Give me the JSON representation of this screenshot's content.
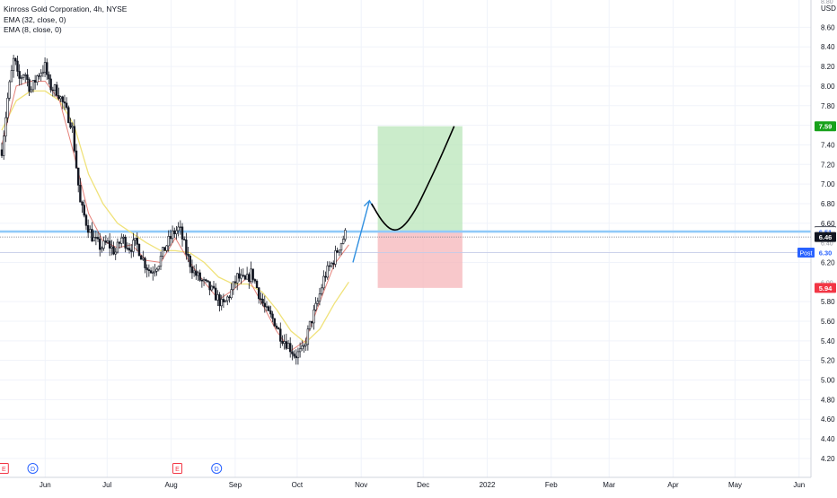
{
  "legend": {
    "symbol": "Kinross Gold Corporation, 4h, NYSE",
    "indicators": [
      "EMA (32, close, 0)",
      "EMA (8, close, 0)"
    ]
  },
  "axis": {
    "currency": "USD",
    "top_partial_label": "8.80",
    "partial_labels": [
      "6.40",
      "6.00"
    ]
  },
  "colors": {
    "candle": "#131722",
    "ema_fast": "#e6827a",
    "ema_slow": "#f0e27a",
    "profit_zone": "#b9e6b9",
    "loss_zone": "#f6b6b9",
    "arrow": "#2f8fe0",
    "hline": "#90caf9",
    "target_tag": "#17a11a",
    "stop_tag": "#f23645",
    "last_price_tag": "#131722",
    "level_tag": "#5d606b",
    "post_tag": "#2962ff"
  },
  "price_tags": [
    {
      "label": "7.59",
      "value": 7.59,
      "kind": "target"
    },
    {
      "label": "6.52",
      "value": 6.52,
      "kind": "level"
    },
    {
      "label": "6.51",
      "value": 6.51,
      "kind": "level_light"
    },
    {
      "label": "6.46",
      "value": 6.46,
      "kind": "last"
    },
    {
      "label": "6.30",
      "value": 6.3,
      "kind": "post"
    },
    {
      "label": "5.94",
      "value": 5.94,
      "kind": "stop"
    }
  ],
  "post_label": "Post",
  "event_markers": [
    {
      "date": "2021-05-12",
      "letter": "E",
      "kind": "earnings"
    },
    {
      "date": "2021-05-26",
      "letter": "D",
      "kind": "dividend"
    },
    {
      "date": "2021-08-04",
      "letter": "E",
      "kind": "earnings"
    },
    {
      "date": "2021-08-23",
      "letter": "D",
      "kind": "dividend"
    }
  ],
  "chart_data": {
    "type": "candlestick",
    "title": "Kinross Gold Corporation, 4h, NYSE",
    "xlabel": "",
    "ylabel": "USD",
    "x_range": [
      "2021-05-11",
      "2022-06-15"
    ],
    "ylim": [
      4.1,
      8.9
    ],
    "y_ticks": [
      8.6,
      8.4,
      8.2,
      8.0,
      7.8,
      7.6,
      7.4,
      7.2,
      7.0,
      6.8,
      6.6,
      6.2,
      5.8,
      5.6,
      5.4,
      5.2,
      5.0,
      4.8,
      4.6,
      4.4,
      4.2
    ],
    "y_tick_labels": [
      "8.60",
      "8.40",
      "8.20",
      "8.00",
      "7.80",
      "7.60",
      "7.40",
      "7.20",
      "7.00",
      "6.80",
      "6.60",
      "6.20",
      "5.80",
      "5.60",
      "5.40",
      "5.20",
      "5.00",
      "4.80",
      "4.60",
      "4.40",
      "4.20"
    ],
    "x_ticks": [
      {
        "date": "2021-06-01",
        "label": "Jun"
      },
      {
        "date": "2021-07-01",
        "label": "Jul"
      },
      {
        "date": "2021-08-01",
        "label": "Aug"
      },
      {
        "date": "2021-09-01",
        "label": "Sep"
      },
      {
        "date": "2021-10-01",
        "label": "Oct"
      },
      {
        "date": "2021-11-01",
        "label": "Nov"
      },
      {
        "date": "2021-12-01",
        "label": "Dec"
      },
      {
        "date": "2022-01-01",
        "label": "2022"
      },
      {
        "date": "2022-02-01",
        "label": "Feb"
      },
      {
        "date": "2022-03-01",
        "label": "Mar"
      },
      {
        "date": "2022-04-01",
        "label": "Apr"
      },
      {
        "date": "2022-05-01",
        "label": "May"
      },
      {
        "date": "2022-06-01",
        "label": "Jun"
      }
    ],
    "grid": true,
    "price_path": [
      [
        "2021-05-11",
        7.35
      ],
      [
        "2021-05-14",
        7.9
      ],
      [
        "2021-05-17",
        8.3
      ],
      [
        "2021-05-19",
        8.05
      ],
      [
        "2021-05-22",
        8.15
      ],
      [
        "2021-05-25",
        7.95
      ],
      [
        "2021-05-28",
        8.1
      ],
      [
        "2021-06-01",
        8.2
      ],
      [
        "2021-06-03",
        8.0
      ],
      [
        "2021-06-07",
        7.95
      ],
      [
        "2021-06-10",
        7.8
      ],
      [
        "2021-06-14",
        7.6
      ],
      [
        "2021-06-16",
        7.2
      ],
      [
        "2021-06-18",
        6.8
      ],
      [
        "2021-06-21",
        6.6
      ],
      [
        "2021-06-24",
        6.45
      ],
      [
        "2021-06-28",
        6.35
      ],
      [
        "2021-07-01",
        6.4
      ],
      [
        "2021-07-05",
        6.3
      ],
      [
        "2021-07-08",
        6.45
      ],
      [
        "2021-07-12",
        6.35
      ],
      [
        "2021-07-15",
        6.4
      ],
      [
        "2021-07-19",
        6.2
      ],
      [
        "2021-07-22",
        6.1
      ],
      [
        "2021-07-26",
        6.2
      ],
      [
        "2021-07-29",
        6.35
      ],
      [
        "2021-08-02",
        6.5
      ],
      [
        "2021-08-05",
        6.55
      ],
      [
        "2021-08-09",
        6.25
      ],
      [
        "2021-08-12",
        6.1
      ],
      [
        "2021-08-16",
        6.0
      ],
      [
        "2021-08-19",
        5.95
      ],
      [
        "2021-08-23",
        5.85
      ],
      [
        "2021-08-26",
        5.75
      ],
      [
        "2021-08-30",
        5.9
      ],
      [
        "2021-09-02",
        6.05
      ],
      [
        "2021-09-06",
        6.0
      ],
      [
        "2021-09-09",
        6.1
      ],
      [
        "2021-09-13",
        5.85
      ],
      [
        "2021-09-16",
        5.7
      ],
      [
        "2021-09-20",
        5.6
      ],
      [
        "2021-09-23",
        5.45
      ],
      [
        "2021-09-27",
        5.35
      ],
      [
        "2021-09-30",
        5.25
      ],
      [
        "2021-10-04",
        5.3
      ],
      [
        "2021-10-07",
        5.55
      ],
      [
        "2021-10-11",
        5.8
      ],
      [
        "2021-10-14",
        6.05
      ],
      [
        "2021-10-18",
        6.2
      ],
      [
        "2021-10-21",
        6.35
      ],
      [
        "2021-10-25",
        6.52
      ]
    ],
    "ema_32": [
      [
        "2021-05-11",
        7.55
      ],
      [
        "2021-05-18",
        7.85
      ],
      [
        "2021-05-25",
        7.95
      ],
      [
        "2021-06-01",
        7.95
      ],
      [
        "2021-06-08",
        7.85
      ],
      [
        "2021-06-15",
        7.6
      ],
      [
        "2021-06-22",
        7.1
      ],
      [
        "2021-06-29",
        6.8
      ],
      [
        "2021-07-06",
        6.6
      ],
      [
        "2021-07-13",
        6.5
      ],
      [
        "2021-07-20",
        6.4
      ],
      [
        "2021-07-27",
        6.32
      ],
      [
        "2021-08-03",
        6.32
      ],
      [
        "2021-08-10",
        6.3
      ],
      [
        "2021-08-17",
        6.2
      ],
      [
        "2021-08-24",
        6.05
      ],
      [
        "2021-08-31",
        5.98
      ],
      [
        "2021-09-07",
        5.98
      ],
      [
        "2021-09-14",
        5.9
      ],
      [
        "2021-09-21",
        5.72
      ],
      [
        "2021-09-28",
        5.5
      ],
      [
        "2021-10-05",
        5.38
      ],
      [
        "2021-10-12",
        5.52
      ],
      [
        "2021-10-19",
        5.78
      ],
      [
        "2021-10-26",
        6.0
      ]
    ],
    "ema_8": [
      [
        "2021-05-11",
        7.4
      ],
      [
        "2021-05-18",
        8.0
      ],
      [
        "2021-05-25",
        8.05
      ],
      [
        "2021-06-01",
        8.05
      ],
      [
        "2021-06-08",
        7.85
      ],
      [
        "2021-06-15",
        7.3
      ],
      [
        "2021-06-22",
        6.7
      ],
      [
        "2021-06-29",
        6.42
      ],
      [
        "2021-07-06",
        6.35
      ],
      [
        "2021-07-13",
        6.38
      ],
      [
        "2021-07-20",
        6.22
      ],
      [
        "2021-07-27",
        6.2
      ],
      [
        "2021-08-03",
        6.45
      ],
      [
        "2021-08-10",
        6.2
      ],
      [
        "2021-08-17",
        6.0
      ],
      [
        "2021-08-24",
        5.82
      ],
      [
        "2021-08-31",
        5.92
      ],
      [
        "2021-09-07",
        6.05
      ],
      [
        "2021-09-14",
        5.78
      ],
      [
        "2021-09-21",
        5.5
      ],
      [
        "2021-09-28",
        5.3
      ],
      [
        "2021-10-05",
        5.4
      ],
      [
        "2021-10-12",
        5.8
      ],
      [
        "2021-10-19",
        6.18
      ],
      [
        "2021-10-26",
        6.38
      ]
    ],
    "horizontal_lines": [
      6.52,
      6.51,
      6.46,
      6.3
    ],
    "position": {
      "type": "long",
      "entry": 6.52,
      "target": 7.59,
      "stop": 5.94,
      "start": "2021-11-09",
      "end": "2021-12-20"
    },
    "projection_curve": [
      [
        "2021-11-06",
        6.8
      ],
      [
        "2021-11-11",
        6.62
      ],
      [
        "2021-11-16",
        6.52
      ],
      [
        "2021-11-21",
        6.55
      ],
      [
        "2021-11-27",
        6.72
      ],
      [
        "2021-12-03",
        6.98
      ],
      [
        "2021-12-09",
        7.25
      ],
      [
        "2021-12-16",
        7.59
      ]
    ],
    "arrow": {
      "from": [
        "2021-10-28",
        6.2
      ],
      "to": [
        "2021-11-05",
        6.83
      ]
    }
  }
}
